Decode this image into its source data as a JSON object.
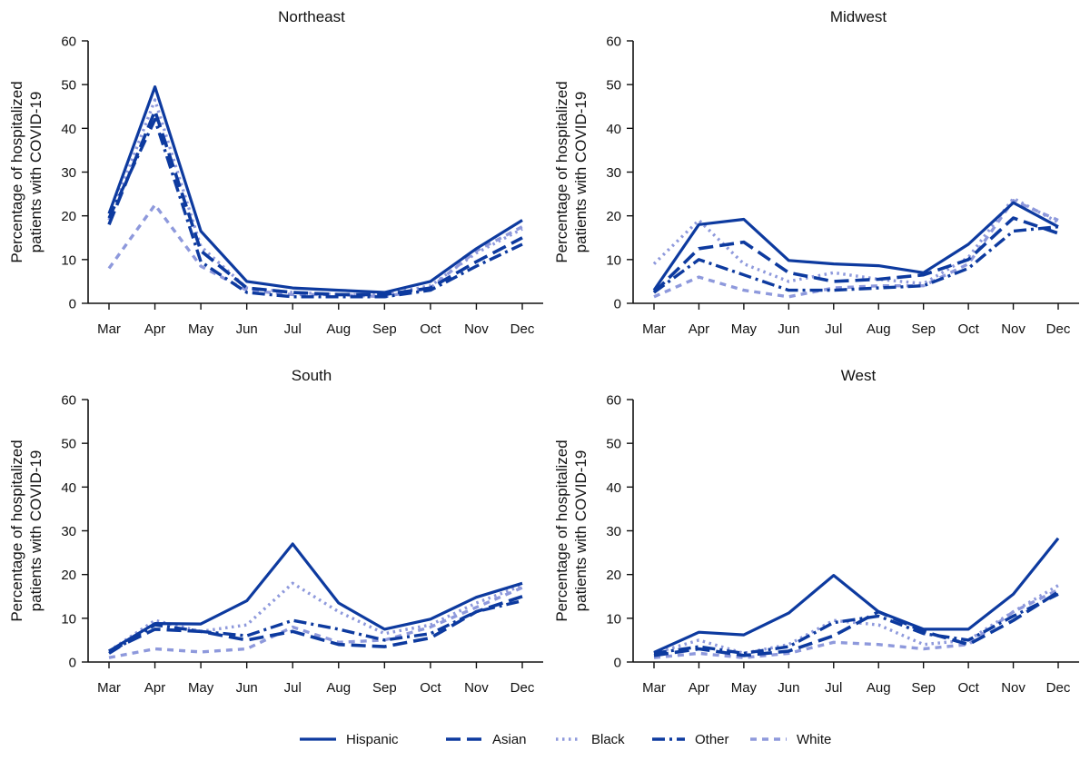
{
  "chart_data": [
    {
      "type": "line",
      "title": "Northeast",
      "ylabel": [
        "Percentage of hospitalized",
        "patients with COVID-19"
      ],
      "ylim": [
        0,
        60
      ],
      "yticks": [
        0,
        10,
        20,
        30,
        40,
        50,
        60
      ],
      "categories": [
        "Mar",
        "Apr",
        "May",
        "Jun",
        "Jul",
        "Aug",
        "Sep",
        "Oct",
        "Nov",
        "Dec"
      ],
      "series": [
        {
          "name": "Hispanic",
          "values": [
            20.5,
            49.5,
            16.5,
            5,
            3.5,
            3,
            2.5,
            5,
            12.5,
            19
          ]
        },
        {
          "name": "Asian",
          "values": [
            18,
            44,
            12,
            3.5,
            2.5,
            2,
            2,
            3.5,
            9.5,
            15
          ]
        },
        {
          "name": "Black",
          "values": [
            19,
            46.5,
            13,
            3.5,
            2.5,
            2,
            2,
            4,
            11.5,
            17
          ]
        },
        {
          "name": "Other",
          "values": [
            19.5,
            42,
            9.5,
            2.5,
            1.5,
            1.5,
            1.5,
            3,
            8.5,
            13.5
          ]
        },
        {
          "name": "White",
          "values": [
            8,
            22.5,
            8.5,
            3,
            2,
            2,
            1.5,
            3.5,
            12,
            17.5
          ]
        }
      ]
    },
    {
      "type": "line",
      "title": "Midwest",
      "ylabel": [
        "Percentage of hospitalized",
        "patients with COVID-19"
      ],
      "ylim": [
        0,
        60
      ],
      "yticks": [
        0,
        10,
        20,
        30,
        40,
        50,
        60
      ],
      "categories": [
        "Mar",
        "Apr",
        "May",
        "Jun",
        "Jul",
        "Aug",
        "Sep",
        "Oct",
        "Nov",
        "Dec"
      ],
      "series": [
        {
          "name": "Hispanic",
          "values": [
            3,
            18,
            19.2,
            9.8,
            9,
            8.6,
            7,
            13.5,
            23,
            17.5
          ]
        },
        {
          "name": "Asian",
          "values": [
            2.5,
            12.5,
            14,
            7,
            5,
            5.5,
            6.5,
            10,
            19.5,
            16
          ]
        },
        {
          "name": "Black",
          "values": [
            9,
            19,
            9,
            5,
            7,
            5.5,
            4.5,
            10.5,
            24,
            18.5
          ]
        },
        {
          "name": "Other",
          "values": [
            2.5,
            10,
            6.5,
            3,
            3,
            3.5,
            4,
            8,
            16.5,
            17.5
          ]
        },
        {
          "name": "White",
          "values": [
            1.5,
            6,
            3,
            1.5,
            3.5,
            4,
            4,
            9,
            23.5,
            19
          ]
        }
      ]
    },
    {
      "type": "line",
      "title": "South",
      "ylabel": [
        "Percentage of hospitalized",
        "patients with COVID-19"
      ],
      "ylim": [
        0,
        60
      ],
      "yticks": [
        0,
        10,
        20,
        30,
        40,
        50,
        60
      ],
      "categories": [
        "Mar",
        "Apr",
        "May",
        "Jun",
        "Jul",
        "Aug",
        "Sep",
        "Oct",
        "Nov",
        "Dec"
      ],
      "series": [
        {
          "name": "Hispanic",
          "values": [
            2.5,
            8.8,
            8.7,
            14,
            27,
            13.5,
            7.5,
            9.8,
            14.8,
            18
          ]
        },
        {
          "name": "Asian",
          "values": [
            2.5,
            7.5,
            7,
            5,
            7,
            4,
            3.5,
            5.5,
            11.5,
            15
          ]
        },
        {
          "name": "Black",
          "values": [
            2.5,
            9.5,
            7,
            8.5,
            18,
            11.5,
            6.5,
            8.5,
            13.5,
            17.5
          ]
        },
        {
          "name": "Other",
          "values": [
            2,
            8.5,
            7,
            6,
            9.5,
            7.5,
            5,
            6.5,
            11.5,
            14
          ]
        },
        {
          "name": "White",
          "values": [
            1,
            3,
            2.3,
            3,
            8,
            4.5,
            5,
            8,
            12.5,
            17
          ]
        }
      ]
    },
    {
      "type": "line",
      "title": "West",
      "ylabel": [
        "Percentage of hospitalized",
        "patients with COVID-19"
      ],
      "ylim": [
        0,
        60
      ],
      "yticks": [
        0,
        10,
        20,
        30,
        40,
        50,
        60
      ],
      "categories": [
        "Mar",
        "Apr",
        "May",
        "Jun",
        "Jul",
        "Aug",
        "Sep",
        "Oct",
        "Nov",
        "Dec"
      ],
      "series": [
        {
          "name": "Hispanic",
          "values": [
            2.2,
            6.8,
            6.2,
            11.2,
            19.8,
            11.5,
            7.5,
            7.5,
            15.5,
            28.3
          ]
        },
        {
          "name": "Asian",
          "values": [
            1.5,
            3,
            1.5,
            2.5,
            6,
            11.5,
            7,
            4,
            9.5,
            16
          ]
        },
        {
          "name": "Black",
          "values": [
            2,
            5,
            2,
            4,
            9.5,
            8.5,
            4,
            5,
            11.5,
            17.5
          ]
        },
        {
          "name": "Other",
          "values": [
            2,
            3.5,
            2,
            3.5,
            9,
            10.5,
            6.5,
            5,
            10.5,
            15.5
          ]
        },
        {
          "name": "White",
          "values": [
            1,
            2,
            1,
            2,
            4.5,
            4,
            3,
            4,
            11.5,
            16.5
          ]
        }
      ]
    }
  ],
  "legend": [
    {
      "name": "Hispanic",
      "color": "#0d3a9f",
      "style": "solid"
    },
    {
      "name": "Asian",
      "color": "#0d3a9f",
      "style": "dashed"
    },
    {
      "name": "Black",
      "color": "#8e99dc",
      "style": "dotted"
    },
    {
      "name": "Other",
      "color": "#0d3a9f",
      "style": "dashdot"
    },
    {
      "name": "White",
      "color": "#8e99dc",
      "style": "dashed-short"
    }
  ],
  "colors": {
    "dark": "#0d3a9f",
    "light": "#8e99dc",
    "axis": "#111111"
  }
}
